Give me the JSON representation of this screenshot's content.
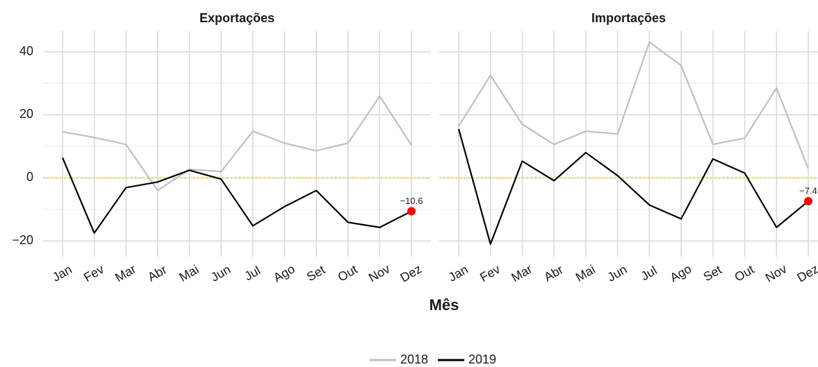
{
  "chart_data": {
    "type": "line",
    "x_label": "Mês",
    "categories": [
      "Jan",
      "Fev",
      "Mar",
      "Abr",
      "Mai",
      "Jun",
      "Jul",
      "Ago",
      "Set",
      "Out",
      "Nov",
      "Dez"
    ],
    "ylim": [
      -25,
      46.5
    ],
    "yticks": [
      {
        "value": -20,
        "label": "−20"
      },
      0,
      20,
      40
    ],
    "minor_yticks": [
      -10,
      10,
      30
    ],
    "grid": true,
    "reference_line": {
      "value": 0,
      "color": "#f2d64b"
    },
    "legend": "bottom",
    "series": [
      {
        "name": "2018",
        "color": "#bfbfbf"
      },
      {
        "name": "2019",
        "color": "#000000"
      }
    ],
    "label_color": "#ff0000",
    "panels": [
      {
        "title": "Exportações",
        "series": [
          {
            "values": [
              14.6,
              12.8,
              10.6,
              -4.0,
              2.7,
              2.0,
              14.8,
              11.0,
              8.6,
              11.0,
              25.9,
              10.4
            ]
          },
          {
            "values": [
              6.4,
              -17.5,
              -3.1,
              -1.3,
              2.4,
              -0.4,
              -15.2,
              -9.1,
              -4.0,
              -14.1,
              -15.7,
              -10.6
            ],
            "value_labels": [
              null,
              null,
              null,
              null,
              null,
              null,
              null,
              null,
              null,
              null,
              null,
              "−10.6"
            ]
          }
        ]
      },
      {
        "title": "Importações",
        "series": [
          {
            "values": [
              16.4,
              32.5,
              17.0,
              10.6,
              14.8,
              13.9,
              43.1,
              35.6,
              10.6,
              12.6,
              28.5,
              2.9
            ]
          },
          {
            "values": [
              15.5,
              -21.0,
              5.3,
              -0.9,
              8.0,
              0.7,
              -8.6,
              -13.0,
              6.0,
              1.5,
              -15.7,
              -7.4
            ],
            "value_labels": [
              null,
              null,
              null,
              null,
              null,
              null,
              null,
              null,
              null,
              null,
              null,
              "−7.4"
            ]
          }
        ]
      }
    ]
  }
}
